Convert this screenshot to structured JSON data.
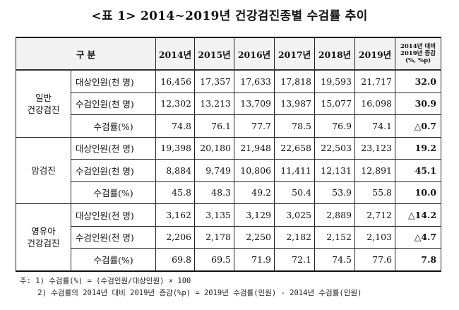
{
  "title": "<표 1> 2014~2019년 건강검진종별 수검률 추이",
  "header": {
    "category": "구  분",
    "years": [
      "2014년",
      "2015년",
      "2016년",
      "2017년",
      "2018년",
      "2019년"
    ],
    "change_line1": "2014년 대비",
    "change_line2": "2019년 증감",
    "change_line3": "(%, %p)"
  },
  "groups": [
    {
      "name_line1": "일반",
      "name_line2": "건강검진",
      "rows": [
        {
          "label": "대상인원(천 명)",
          "values": [
            "16,456",
            "17,357",
            "17,633",
            "17,818",
            "19,593",
            "21,717"
          ],
          "change": "32.0"
        },
        {
          "label": "수검인원(천 명)",
          "values": [
            "12,302",
            "13,213",
            "13,709",
            "13,987",
            "15,077",
            "16,098"
          ],
          "change": "30.9"
        },
        {
          "label": "수검률(%)",
          "values": [
            "74.8",
            "76.1",
            "77.7",
            "78.5",
            "76.9",
            "74.1"
          ],
          "change": "△0.7"
        }
      ]
    },
    {
      "name_line1": "암검진",
      "name_line2": "",
      "rows": [
        {
          "label": "대상인원(천 명)",
          "values": [
            "19,398",
            "20,180",
            "21,948",
            "22,658",
            "22,503",
            "23,123"
          ],
          "change": "19.2"
        },
        {
          "label": "수검인원(천 명)",
          "values": [
            "8,884",
            "9,749",
            "10,806",
            "11,411",
            "12,131",
            "12,891"
          ],
          "change": "45.1"
        },
        {
          "label": "수검률(%)",
          "values": [
            "45.8",
            "48.3",
            "49.2",
            "50.4",
            "53.9",
            "55.8"
          ],
          "change": "10.0"
        }
      ]
    },
    {
      "name_line1": "영유아",
      "name_line2": "건강검진",
      "rows": [
        {
          "label": "대상인원(천 명)",
          "values": [
            "3,162",
            "3,135",
            "3,129",
            "3,025",
            "2,889",
            "2,712"
          ],
          "change": "△14.2"
        },
        {
          "label": "수검인원(천 명)",
          "values": [
            "2,206",
            "2,178",
            "2,250",
            "2,182",
            "2,152",
            "2,103"
          ],
          "change": "△4.7"
        },
        {
          "label": "수검률(%)",
          "values": [
            "69.8",
            "69.5",
            "71.9",
            "72.1",
            "74.5",
            "77.6"
          ],
          "change": "7.8"
        }
      ]
    }
  ],
  "notes": [
    "주: 1) 수검률(%) = (수검인원/대상인원) × 100",
    "    2) 수검률의 2014년 대비 2019년 증감(%p) = 2019년 수검률(인원) - 2014년 수검률(인원)"
  ]
}
